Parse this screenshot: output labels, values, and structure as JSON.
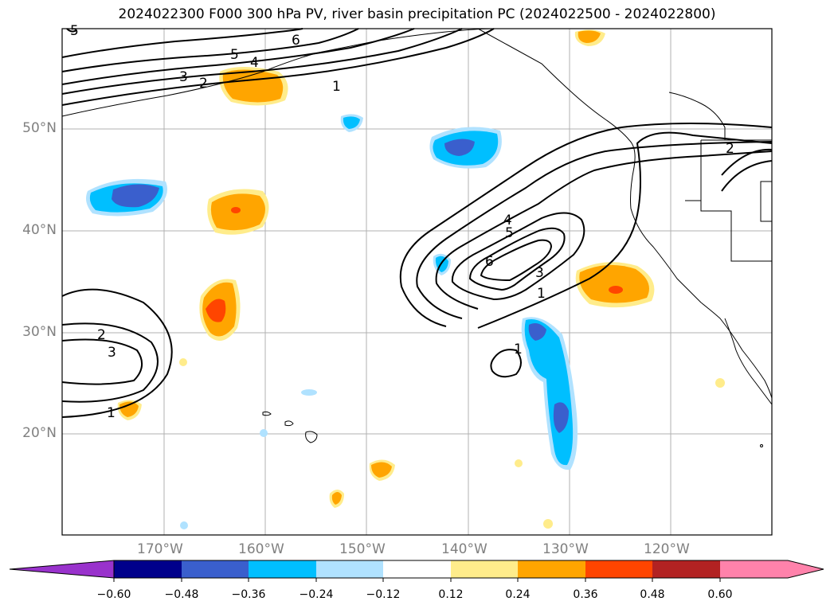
{
  "title": "2024022300 F000 300 hPa PV, river basin precipitation PC (2024022500 - 2024022800)",
  "map": {
    "lat_labels": [
      "50°N",
      "40°N",
      "30°N",
      "20°N"
    ],
    "lon_labels": [
      "170°W",
      "160°W",
      "150°W",
      "140°W",
      "130°W",
      "120°W"
    ],
    "contour_labels": [
      "5",
      "6",
      "5",
      "4",
      "3",
      "2",
      "1",
      "2",
      "4",
      "5",
      "6",
      "3",
      "1",
      "1",
      "2",
      "3",
      "1"
    ]
  },
  "colorbar": {
    "ticks": [
      "−0.60",
      "−0.48",
      "−0.36",
      "−0.24",
      "−0.12",
      "0.12",
      "0.24",
      "0.36",
      "0.48",
      "0.60"
    ],
    "colors": [
      "#9932cc",
      "#00008b",
      "#3a5fcd",
      "#00bfff",
      "#b0e2ff",
      "#ffffff",
      "#ffec8b",
      "#ffa500",
      "#ff4500",
      "#b22222",
      "#ff82ab"
    ]
  }
}
